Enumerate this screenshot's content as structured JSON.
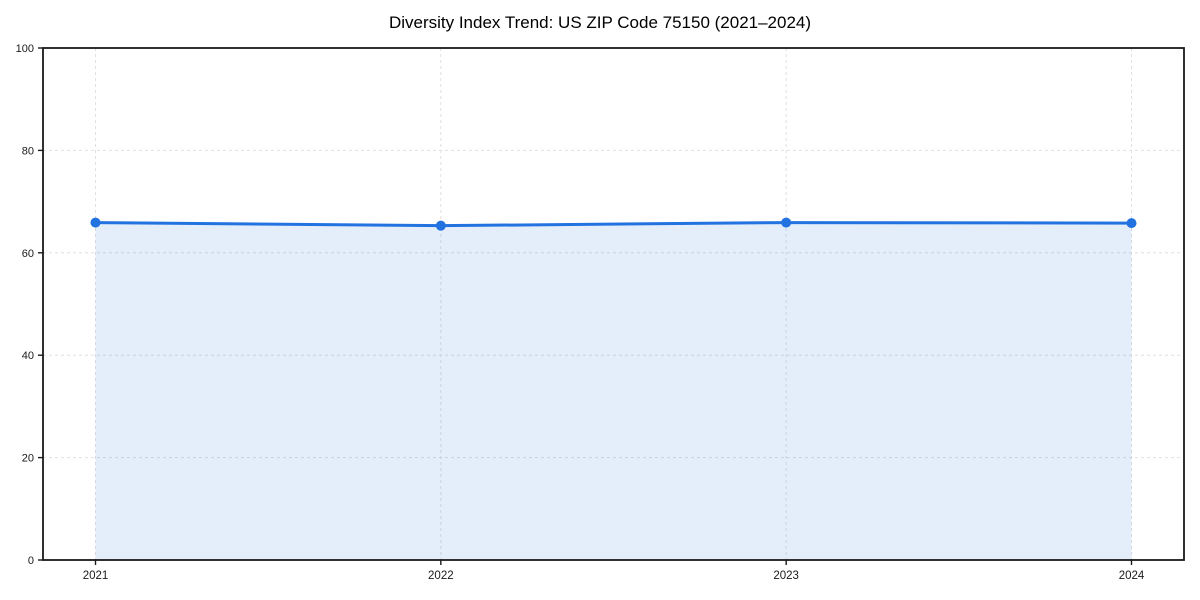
{
  "figure": {
    "background": "#ffffff"
  },
  "chart_data": {
    "type": "line",
    "title": "Diversity Index Trend: US ZIP Code 75150 (2021–2024)",
    "x_categories": [
      "2021",
      "2022",
      "2023",
      "2024"
    ],
    "series": [
      {
        "name": "Diversity Index",
        "values": [
          65.9,
          65.3,
          65.9,
          65.8
        ]
      }
    ],
    "xlabel": "",
    "ylabel": "",
    "ylim": [
      0,
      100
    ],
    "yticks": [
      0,
      20,
      40,
      60,
      80,
      100
    ],
    "grid": true,
    "grid_style": "dashed",
    "legend_position": "none",
    "area_fill": true,
    "marker": "circle",
    "colors": {
      "line": "#2272e0",
      "marker": "#2272e0",
      "fill": "#2272e0",
      "fill_opacity": 0.12,
      "gridline": "#e0e0e0",
      "spine": "#1a1a1a",
      "tick_label": "#1a1a1a"
    }
  }
}
